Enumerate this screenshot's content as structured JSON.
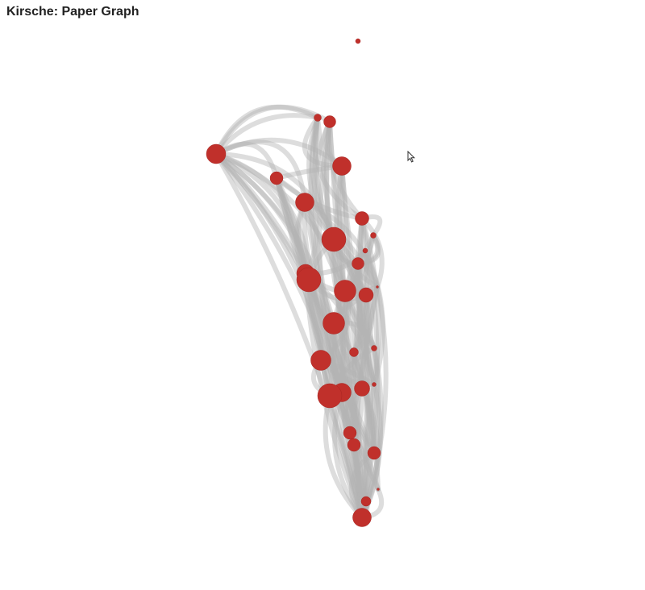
{
  "header": {
    "title": "Kirsche: Paper Graph"
  },
  "colors": {
    "node": "#c0302b",
    "node_stroke": "#a72521",
    "edge": "#b3b3b3",
    "background": "#ffffff"
  },
  "icons": {
    "cursor": "arrow-cursor-icon"
  },
  "graph": {
    "node_count": 31
  }
}
